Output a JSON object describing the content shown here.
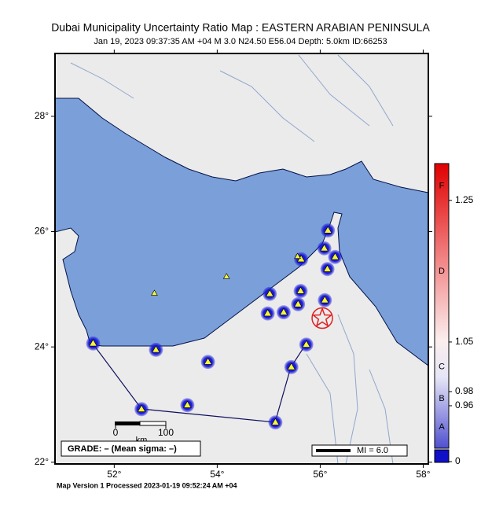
{
  "map": {
    "title": "Dubai Municipality Uncertainty Ratio Map : EASTERN ARABIAN PENINSULA",
    "subtitle": "Jan 19, 2023 09:37:35 AM +04   M 3.0   N24.50 E56.04   Depth: 5.0km   ID:66253",
    "xlim": [
      50.85,
      58.1
    ],
    "ylim": [
      21.97,
      29.09
    ],
    "xticks": [
      {
        "value": 52,
        "label": "52°"
      },
      {
        "value": 54,
        "label": "54°"
      },
      {
        "value": 56,
        "label": "56°"
      },
      {
        "value": 58,
        "label": "58°"
      }
    ],
    "yticks": [
      {
        "value": 22,
        "label": "22°"
      },
      {
        "value": 24,
        "label": "24°"
      },
      {
        "value": 26,
        "label": "26°"
      },
      {
        "value": 28,
        "label": "28°"
      }
    ],
    "epicenter": [
      56.04,
      24.5
    ],
    "epicenter_color": "#e02020",
    "station_color": "#1a1ad6",
    "triangle_color": "#f5f53a",
    "stations": [
      [
        51.59,
        24.06
      ],
      [
        52.81,
        23.95
      ],
      [
        53.82,
        23.74
      ],
      [
        52.53,
        22.92
      ],
      [
        53.42,
        22.99
      ],
      [
        55.13,
        22.69
      ],
      [
        55.44,
        23.65
      ],
      [
        55.73,
        24.04
      ],
      [
        54.98,
        24.58
      ],
      [
        55.02,
        24.92
      ],
      [
        55.29,
        24.6
      ],
      [
        55.57,
        24.74
      ],
      [
        55.62,
        24.97
      ],
      [
        56.09,
        24.81
      ],
      [
        56.14,
        25.35
      ],
      [
        56.08,
        25.71
      ],
      [
        56.15,
        26.02
      ],
      [
        55.63,
        25.52
      ],
      [
        56.29,
        25.56
      ]
    ],
    "other_stations": [
      [
        54.18,
        25.22
      ],
      [
        52.78,
        24.93
      ],
      [
        55.56,
        25.57
      ]
    ],
    "scale_bar": {
      "ticks": [
        0,
        100
      ],
      "unit": "km"
    },
    "grade_text": "GRADE: – (Mean sigma: –)",
    "mi_legend": "MI = 6.0",
    "colorbar": {
      "lim": [
        0.9,
        1.302
      ],
      "ticks": [
        1.25,
        1.05,
        0.98,
        0.96
      ],
      "grades": [
        {
          "value": 1.27,
          "label": "F"
        },
        {
          "value": 1.15,
          "label": "D"
        },
        {
          "value": 1.015,
          "label": "C"
        },
        {
          "value": 0.97,
          "label": "B"
        },
        {
          "value": 0.93,
          "label": "A"
        }
      ],
      "nodata_tick": 0
    },
    "footer": "Map Version 1 Processed 2023-01-19 09:52:24 AM +04"
  }
}
